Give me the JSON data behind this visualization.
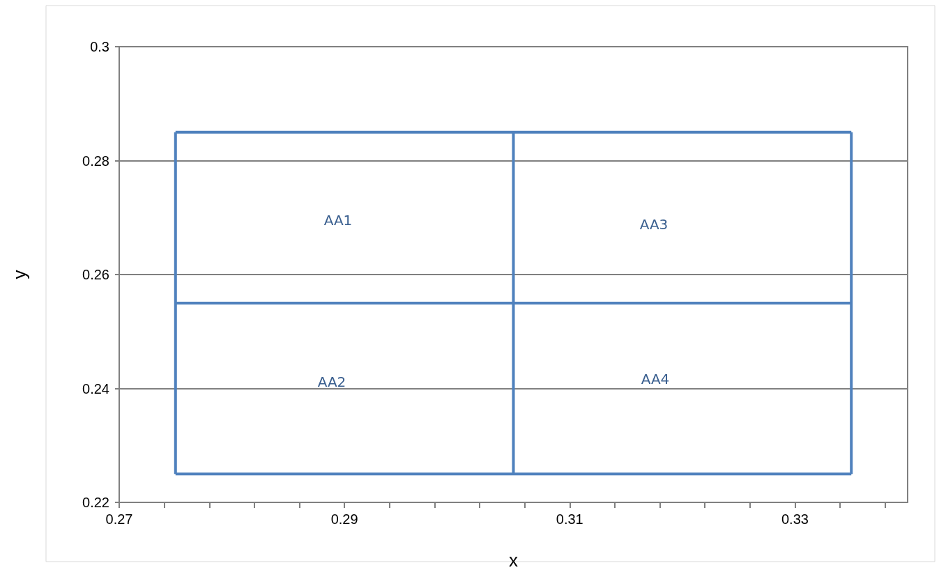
{
  "chart_data": {
    "type": "line",
    "xlabel": "x",
    "ylabel": "y",
    "xlim": [
      0.27,
      0.34
    ],
    "ylim": [
      0.22,
      0.3
    ],
    "xticks": [
      0.27,
      {
        "value": 0.274,
        "label": null
      },
      {
        "value": 0.278,
        "label": null
      },
      {
        "value": 0.282,
        "label": null
      },
      {
        "value": 0.286,
        "label": null
      },
      0.29,
      {
        "value": 0.294,
        "label": null
      },
      {
        "value": 0.298,
        "label": null
      },
      {
        "value": 0.302,
        "label": null
      },
      {
        "value": 0.306,
        "label": null
      },
      0.31,
      {
        "value": 0.314,
        "label": null
      },
      {
        "value": 0.318,
        "label": null
      },
      {
        "value": 0.322,
        "label": null
      },
      {
        "value": 0.326,
        "label": null
      },
      0.33,
      {
        "value": 0.334,
        "label": null
      },
      {
        "value": 0.338,
        "label": null
      }
    ],
    "yticks": [
      0.22,
      0.24,
      0.26,
      0.28,
      0.3
    ],
    "grid": "y",
    "marker": "none",
    "line_style": "solid",
    "series": [
      {
        "color": "#4f81bd",
        "x": [
          0.275,
          0.305,
          0.335
        ],
        "values": [
          0.285,
          0.285,
          0.285
        ]
      },
      {
        "color": "#4f81bd",
        "x": [
          0.275,
          0.305,
          0.335
        ],
        "values": [
          0.255,
          0.255,
          0.255
        ]
      },
      {
        "color": "#4f81bd",
        "x": [
          0.275,
          0.305,
          0.335
        ],
        "values": [
          0.225,
          0.225,
          0.225
        ]
      },
      {
        "color": "#4f81bd",
        "x": [
          0.275,
          0.275
        ],
        "values": [
          0.285,
          0.225
        ]
      },
      {
        "color": "#4f81bd",
        "x": [
          0.305,
          0.305
        ],
        "values": [
          0.285,
          0.225
        ]
      },
      {
        "color": "#4f81bd",
        "x": [
          0.335,
          0.335
        ],
        "values": [
          0.285,
          0.225
        ]
      }
    ],
    "annotations": [
      "AA1",
      "AA3",
      "AA2",
      "AA4"
    ]
  }
}
